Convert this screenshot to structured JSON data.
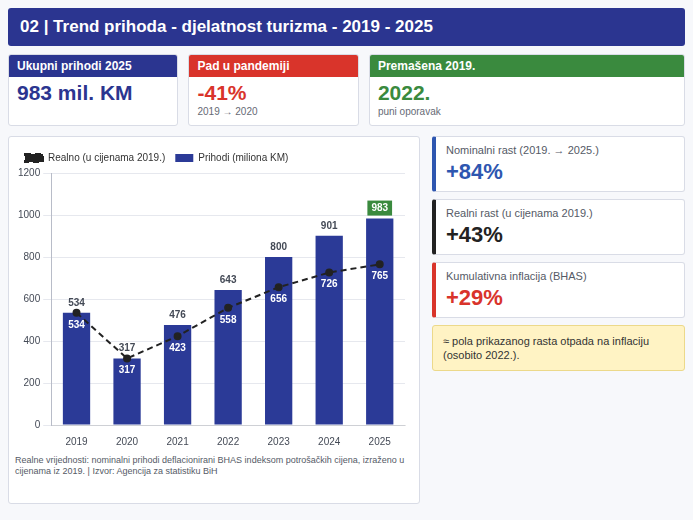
{
  "header": {
    "title": "02 | Trend prihoda - djelatnost turizma - 2019 - 2025"
  },
  "kpis": [
    {
      "label": "Ukupni prihodi 2025",
      "value": "983 mil. KM",
      "color": "#2b3590"
    },
    {
      "label": "Pad u pandemiji",
      "value": "-41%",
      "sub": "2019 → 2020",
      "color": "#d9342b"
    },
    {
      "label": "Premašena 2019.",
      "value": "2022.",
      "sub": "puni oporavak",
      "color": "#3a8a3e"
    }
  ],
  "chart_data": {
    "type": "bar",
    "categories": [
      "2019",
      "2020",
      "2021",
      "2022",
      "2023",
      "2024",
      "2025"
    ],
    "series": [
      {
        "name": "Prihodi (miliona KM)",
        "type": "bar",
        "color": "#2b3a97",
        "values": [
          534,
          317,
          476,
          643,
          800,
          901,
          983
        ]
      },
      {
        "name": "Realno (u cijenama 2019.)",
        "type": "line",
        "color": "#222222",
        "line_style": "dashed",
        "marker": "circle",
        "values": [
          534,
          317,
          423,
          558,
          656,
          726,
          765
        ]
      }
    ],
    "ylim": [
      0,
      1200
    ],
    "yticks": [
      0,
      200,
      400,
      600,
      800,
      1000,
      1200
    ],
    "grid": true,
    "legend": "top",
    "data_labels": true
  },
  "cards": [
    {
      "label": "Nominalni rast (2019. → 2025.)",
      "value": "+84%",
      "color": "#2e56b0"
    },
    {
      "label": "Realni rast (u cijenama 2019.)",
      "value": "+43%",
      "color": "#222222"
    },
    {
      "label": "Kumulativna inflacija (BHAS)",
      "value": "+29%",
      "color": "#d9342b"
    }
  ],
  "note": "≈ pola prikazanog rasta otpada na inflaciju (osobito 2022.).",
  "footnote": "Realne vrijednosti: nominalni prihodi deflacionirani BHAS indeksom potrošačkih cijena, izraženo u cijenama iz 2019. | Izvor: Agencija za statistiku BiH"
}
